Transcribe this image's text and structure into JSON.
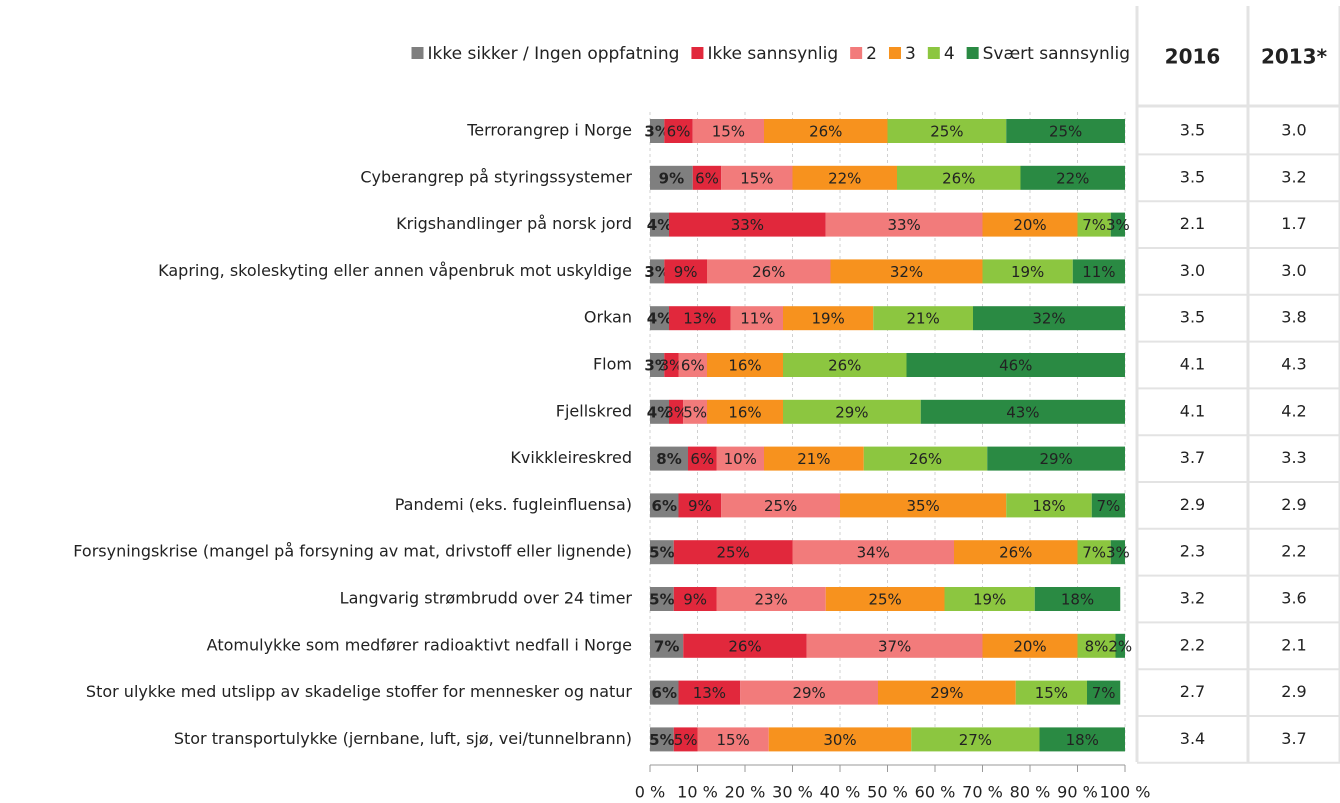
{
  "chart_data": {
    "type": "stacked_barh",
    "categories": [
      "Terrorangrep i Norge",
      "Cyberangrep på styringssystemer",
      "Krigshandlinger på norsk jord",
      "Kapring, skoleskyting eller annen våpenbruk mot uskyldige",
      "Orkan",
      "Flom",
      "Fjellskred",
      "Kvikkleireskred",
      "Pandemi (eks. fugleinfluensa)",
      "Forsyningskrise (mangel på forsyning av mat, drivstoff eller lignende)",
      "Langvarig strømbrudd over 24 timer",
      "Atomulykke som medfører radioaktivt nedfall i Norge",
      "Stor ulykke med utslipp av skadelige stoffer for mennesker og natur",
      "Stor transportulykke (jernbane, luft, sjø, vei/tunnelbrann)"
    ],
    "series": [
      {
        "name": "Ikke sikker / Ingen oppfatning",
        "color": "#7f7f7f",
        "values": [
          3,
          9,
          4,
          3,
          4,
          3,
          4,
          8,
          6,
          5,
          5,
          7,
          6,
          5
        ],
        "value_labels": [
          "3%",
          "9%",
          "4%",
          "3%",
          "4%",
          "3%",
          "4%",
          "8%",
          "6%",
          "5%",
          "5%",
          "7%",
          "6%",
          "5%"
        ]
      },
      {
        "name": "Ikke sannsynlig",
        "color": "#e1283c",
        "values": [
          6,
          6,
          33,
          9,
          13,
          3,
          3,
          6,
          9,
          25,
          9,
          26,
          13,
          5
        ],
        "value_labels": [
          "6%",
          "6%",
          "33%",
          "9%",
          "13%",
          "3%",
          "3%",
          "6%",
          "9%",
          "25%",
          "9%",
          "26%",
          "13%",
          "5%"
        ]
      },
      {
        "name": "2",
        "color": "#f27b7b",
        "values": [
          15,
          15,
          33,
          26,
          11,
          6,
          5,
          10,
          25,
          34,
          23,
          37,
          29,
          15
        ],
        "value_labels": [
          "15%",
          "15%",
          "33%",
          "26%",
          "11%",
          "6%",
          "5%",
          "10%",
          "25%",
          "34%",
          "23%",
          "37%",
          "29%",
          "15%"
        ]
      },
      {
        "name": "3",
        "color": "#f7921e",
        "values": [
          26,
          22,
          20,
          32,
          19,
          16,
          16,
          21,
          35,
          26,
          25,
          20,
          29,
          30
        ],
        "value_labels": [
          "26%",
          "22%",
          "20%",
          "32%",
          "19%",
          "16%",
          "16%",
          "21%",
          "35%",
          "26%",
          "25%",
          "20%",
          "29%",
          "30%"
        ]
      },
      {
        "name": "4",
        "color": "#8cc640",
        "values": [
          25,
          26,
          7,
          19,
          21,
          26,
          29,
          26,
          18,
          7,
          19,
          8,
          15,
          27
        ],
        "value_labels": [
          "25%",
          "26%",
          "7%",
          "19%",
          "21%",
          "26%",
          "29%",
          "26%",
          "18%",
          "7%",
          "19%",
          "8%",
          "15%",
          "27%"
        ]
      },
      {
        "name": "Svært sannsynlig",
        "color": "#2a8a43",
        "values": [
          25,
          22,
          3,
          11,
          32,
          46,
          43,
          29,
          7,
          3,
          18,
          2,
          7,
          18
        ],
        "value_labels": [
          "25%",
          "22%",
          "3%",
          "11%",
          "32%",
          "46%",
          "43%",
          "29%",
          "7%",
          "3%",
          "18%",
          "2%",
          "7%",
          "18%"
        ]
      }
    ],
    "xlim": [
      0,
      100
    ],
    "xticks": [
      {
        "value": 0,
        "label": "0 %"
      },
      {
        "value": 10,
        "label": "10 %"
      },
      {
        "value": 20,
        "label": "20 %"
      },
      {
        "value": 30,
        "label": "30 %"
      },
      {
        "value": 40,
        "label": "40 %"
      },
      {
        "value": 50,
        "label": "50 %"
      },
      {
        "value": 60,
        "label": "60 %"
      },
      {
        "value": 70,
        "label": "70 %"
      },
      {
        "value": 80,
        "label": "80 %"
      },
      {
        "value": 90,
        "label": "90 %"
      },
      {
        "value": 100,
        "label": "100 %"
      }
    ],
    "grid": true,
    "legend": "top",
    "table": {
      "headers": [
        "2016",
        "2013*"
      ],
      "rows": [
        [
          "3.5",
          "3.0"
        ],
        [
          "3.5",
          "3.2"
        ],
        [
          "2.1",
          "1.7"
        ],
        [
          "3.0",
          "3.0"
        ],
        [
          "3.5",
          "3.8"
        ],
        [
          "4.1",
          "4.3"
        ],
        [
          "4.1",
          "4.2"
        ],
        [
          "3.7",
          "3.3"
        ],
        [
          "2.9",
          "2.9"
        ],
        [
          "2.3",
          "2.2"
        ],
        [
          "3.2",
          "3.6"
        ],
        [
          "2.2",
          "2.1"
        ],
        [
          "2.7",
          "2.9"
        ],
        [
          "3.4",
          "3.7"
        ]
      ]
    }
  }
}
